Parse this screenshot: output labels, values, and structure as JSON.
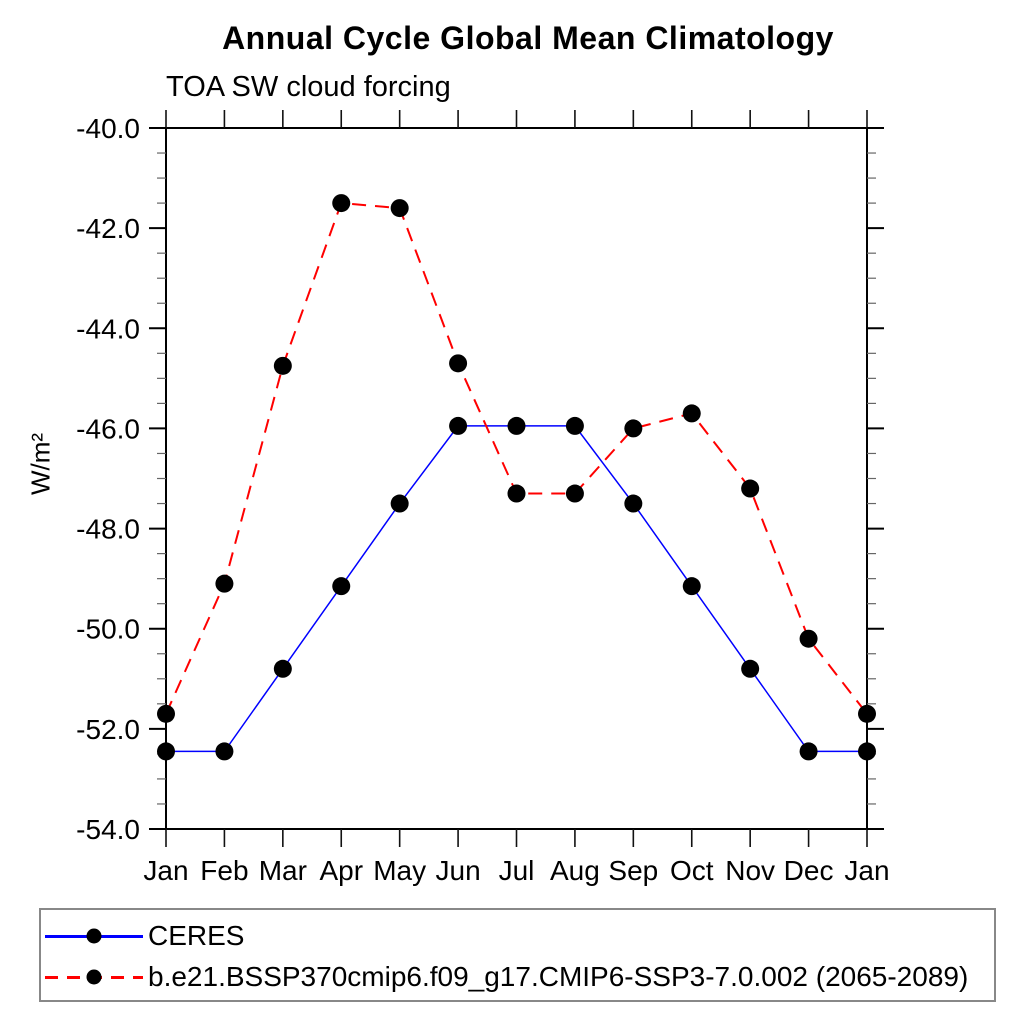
{
  "page": {
    "background": "#ffffff"
  },
  "chart_data": {
    "type": "line",
    "title": "Annual Cycle Global Mean Climatology",
    "subtitle": "TOA SW cloud forcing",
    "ylabel": "W/m²",
    "xlabel": "",
    "categories": [
      "Jan",
      "Feb",
      "Mar",
      "Apr",
      "May",
      "Jun",
      "Jul",
      "Aug",
      "Sep",
      "Oct",
      "Nov",
      "Dec",
      "Jan"
    ],
    "ylim": [
      -54.0,
      -40.0
    ],
    "ytick_values": [
      -40,
      -42,
      -44,
      -46,
      -48,
      -50,
      -52,
      -54
    ],
    "ytick_labels": [
      "-40.0",
      "-42.0",
      "-44.0",
      "-46.0",
      "-48.0",
      "-50.0",
      "-52.0",
      "-54.0"
    ],
    "ytick_minor_step": 0.5,
    "grid": false,
    "legend_position": "bottom",
    "axis_color": "#000000",
    "minor_tick_color": "#666666",
    "marker": "filled-circle",
    "series": [
      {
        "name": "CERES",
        "color": "#0000ff",
        "line_style": "solid",
        "marker_color": "#000000",
        "values": [
          -52.45,
          -52.45,
          -50.8,
          -49.15,
          -47.5,
          -45.95,
          -45.95,
          -45.95,
          -47.5,
          -49.15,
          -50.8,
          -52.45,
          -52.45
        ]
      },
      {
        "name": "b.e21.BSSP370cmip6.f09_g17.CMIP6-SSP3-7.0.002 (2065-2089)",
        "color": "#ff0000",
        "line_style": "dashed",
        "marker_color": "#000000",
        "values": [
          -51.7,
          -49.1,
          -44.75,
          -41.5,
          -41.6,
          -44.7,
          -47.3,
          -47.3,
          -46.0,
          -45.7,
          -47.2,
          -50.2,
          -51.7
        ]
      }
    ]
  }
}
